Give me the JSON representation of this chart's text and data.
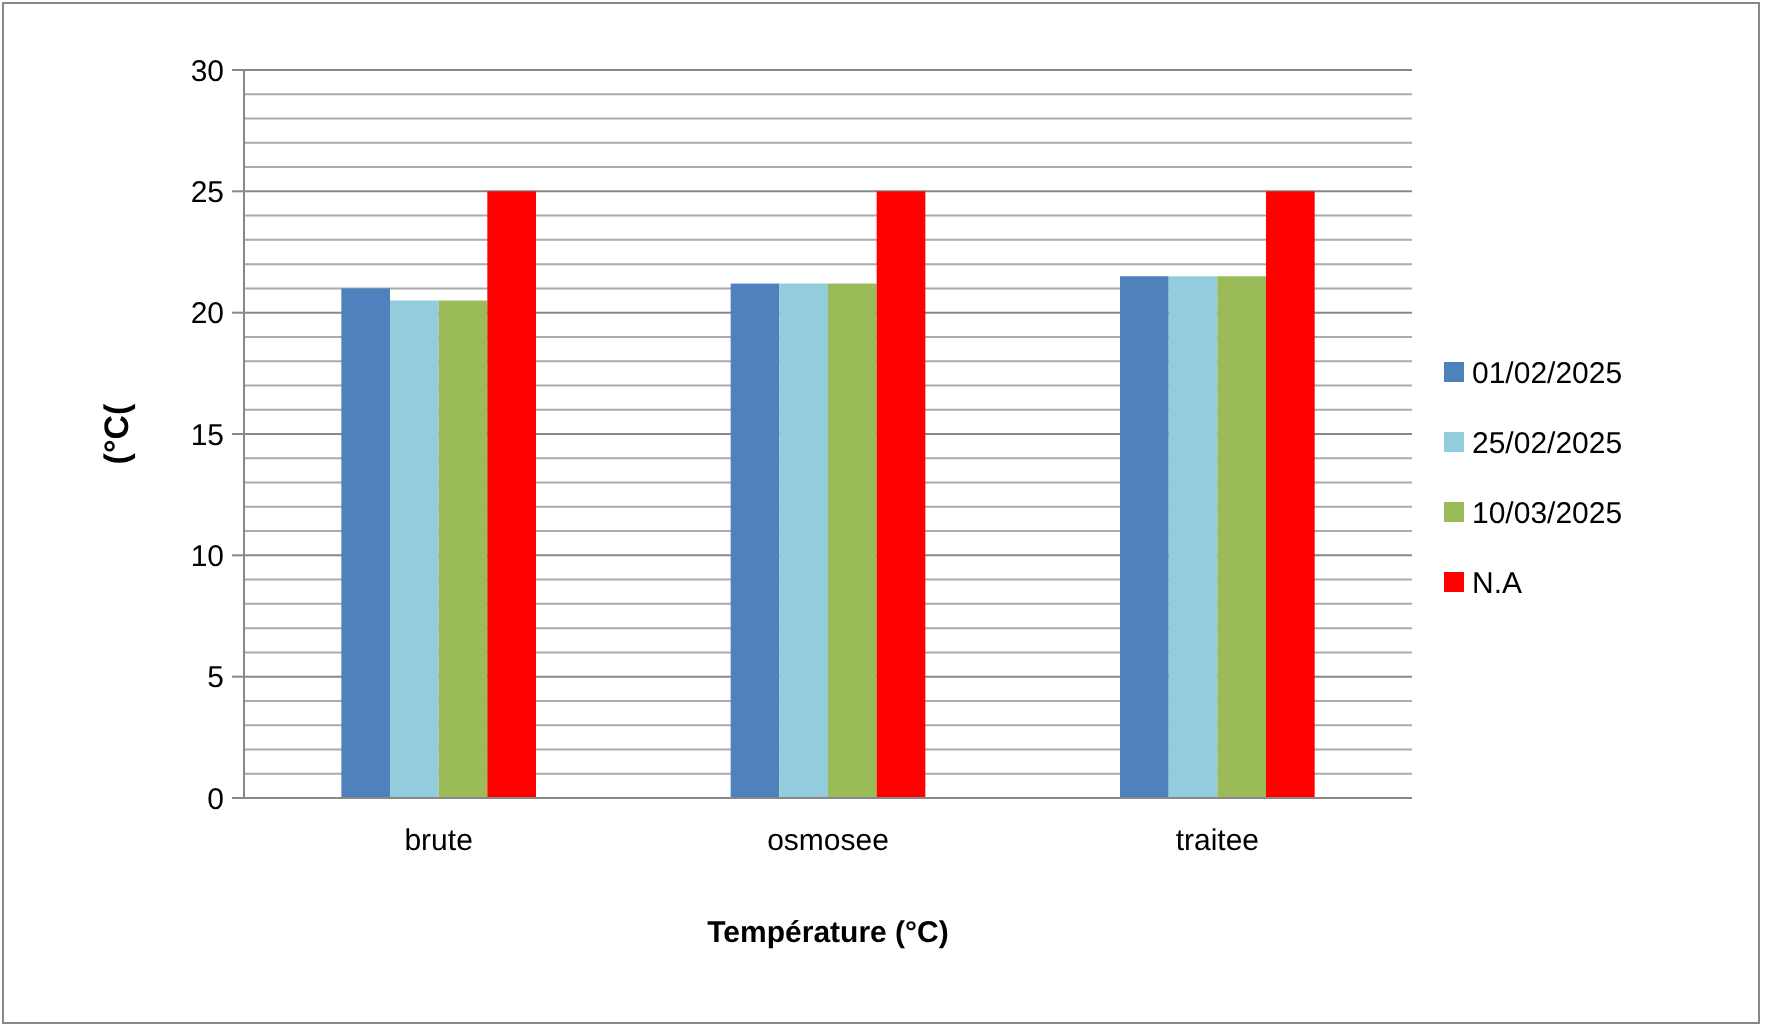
{
  "chart_data": {
    "type": "bar",
    "xlabel": "Température (°C)",
    "ylabel": "(°C(",
    "categories": [
      "brute",
      "osmosee",
      "traitee"
    ],
    "series": [
      {
        "name": "01/02/2025",
        "color": "#4f81bd",
        "values": [
          21,
          21.2,
          21.5
        ]
      },
      {
        "name": "25/02/2025",
        "color": "#93cddd",
        "values": [
          20.5,
          21.2,
          21.5
        ]
      },
      {
        "name": "10/03/2025",
        "color": "#9bbb59",
        "values": [
          20.5,
          21.2,
          21.5
        ]
      },
      {
        "name": "N.A",
        "color": "#ff0000",
        "values": [
          25,
          25,
          25
        ]
      }
    ],
    "ylim": [
      0,
      30
    ],
    "yticks": [
      0,
      {
        "value": 1,
        "label": null
      },
      {
        "value": 2,
        "label": null
      },
      {
        "value": 3,
        "label": null
      },
      {
        "value": 4,
        "label": null
      },
      5,
      {
        "value": 6,
        "label": null
      },
      {
        "value": 7,
        "label": null
      },
      {
        "value": 8,
        "label": null
      },
      {
        "value": 9,
        "label": null
      },
      10,
      {
        "value": 11,
        "label": null
      },
      {
        "value": 12,
        "label": null
      },
      {
        "value": 13,
        "label": null
      },
      {
        "value": 14,
        "label": null
      },
      15,
      {
        "value": 16,
        "label": null
      },
      {
        "value": 17,
        "label": null
      },
      {
        "value": 18,
        "label": null
      },
      {
        "value": 19,
        "label": null
      },
      20,
      {
        "value": 21,
        "label": null
      },
      {
        "value": 22,
        "label": null
      },
      {
        "value": 23,
        "label": null
      },
      {
        "value": 24,
        "label": null
      },
      25,
      {
        "value": 26,
        "label": null
      },
      {
        "value": 27,
        "label": null
      },
      {
        "value": 28,
        "label": null
      },
      {
        "value": 29,
        "label": null
      },
      30
    ],
    "grid": "y",
    "legend": "right"
  }
}
